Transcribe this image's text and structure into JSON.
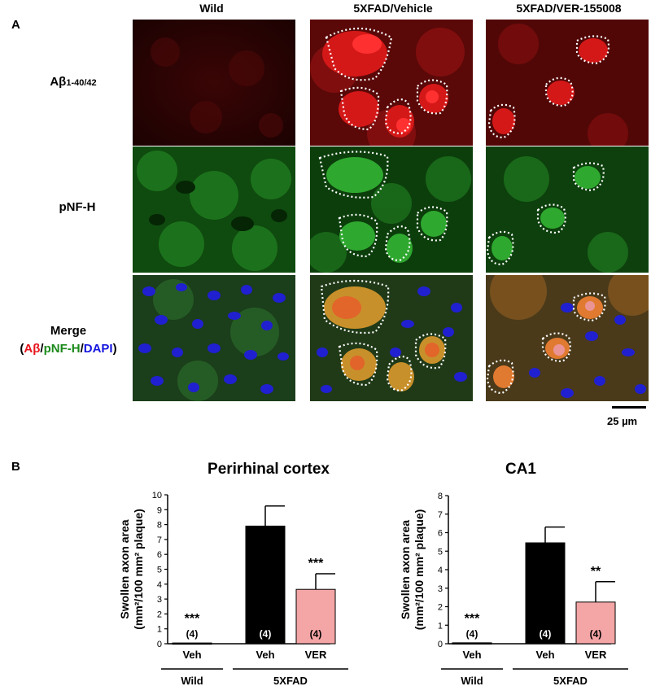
{
  "panel_a": {
    "letter": "A",
    "columns": [
      "Wild",
      "5XFAD/Vehicle",
      "5XFAD/VER-155008"
    ],
    "rows": {
      "abeta": {
        "main": "Aβ",
        "sub": "1-40/42"
      },
      "pnf": "pNF-H",
      "merge": {
        "label": "Merge",
        "open": "(",
        "ab": "Aβ",
        "slash1": "/",
        "pnf": "pNF-H",
        "slash2": "/",
        "dapi": "DAPI",
        "close": ")"
      }
    },
    "scale_bar": "25 µm",
    "colors": {
      "red": "#e8141c",
      "green": "#1a8a1a",
      "blue": "#1616e0"
    }
  },
  "panel_b": {
    "letter": "B"
  },
  "chart_data": [
    {
      "type": "bar",
      "title": "Perirhinal cortex",
      "ylabel_line1": "Swollen axon area",
      "ylabel_line2": "(mm²/100 mm² plaque)",
      "ylim": [
        0,
        10
      ],
      "yticks": [
        "0",
        "1",
        "2",
        "3",
        "4",
        "5",
        "6",
        "7",
        "8",
        "9",
        "10"
      ],
      "categories": [
        "Veh",
        "Veh",
        "VER"
      ],
      "values": [
        0.05,
        7.9,
        3.65
      ],
      "errors": [
        0,
        1.35,
        1.05
      ],
      "n_labels": [
        "(4)",
        "(4)",
        "(4)"
      ],
      "significance": [
        "***",
        "",
        "***"
      ],
      "bar_colors": [
        "#000000",
        "#000000",
        "#f4a5a5"
      ],
      "groups": [
        {
          "label": "Wild"
        },
        {
          "label": "5XFAD"
        }
      ]
    },
    {
      "type": "bar",
      "title": "CA1",
      "ylabel_line1": "Swollen axon area",
      "ylabel_line2": "(mm²/100 mm² plaque)",
      "ylim": [
        0,
        8
      ],
      "yticks": [
        "0",
        "1",
        "2",
        "3",
        "4",
        "5",
        "6",
        "7",
        "8"
      ],
      "categories": [
        "Veh",
        "Veh",
        "VER"
      ],
      "values": [
        0.05,
        5.45,
        2.25
      ],
      "errors": [
        0,
        0.85,
        1.1
      ],
      "n_labels": [
        "(4)",
        "(4)",
        "(4)"
      ],
      "significance": [
        "***",
        "",
        "**"
      ],
      "bar_colors": [
        "#000000",
        "#000000",
        "#f4a5a5"
      ],
      "groups": [
        {
          "label": "Wild"
        },
        {
          "label": "5XFAD"
        }
      ]
    }
  ]
}
